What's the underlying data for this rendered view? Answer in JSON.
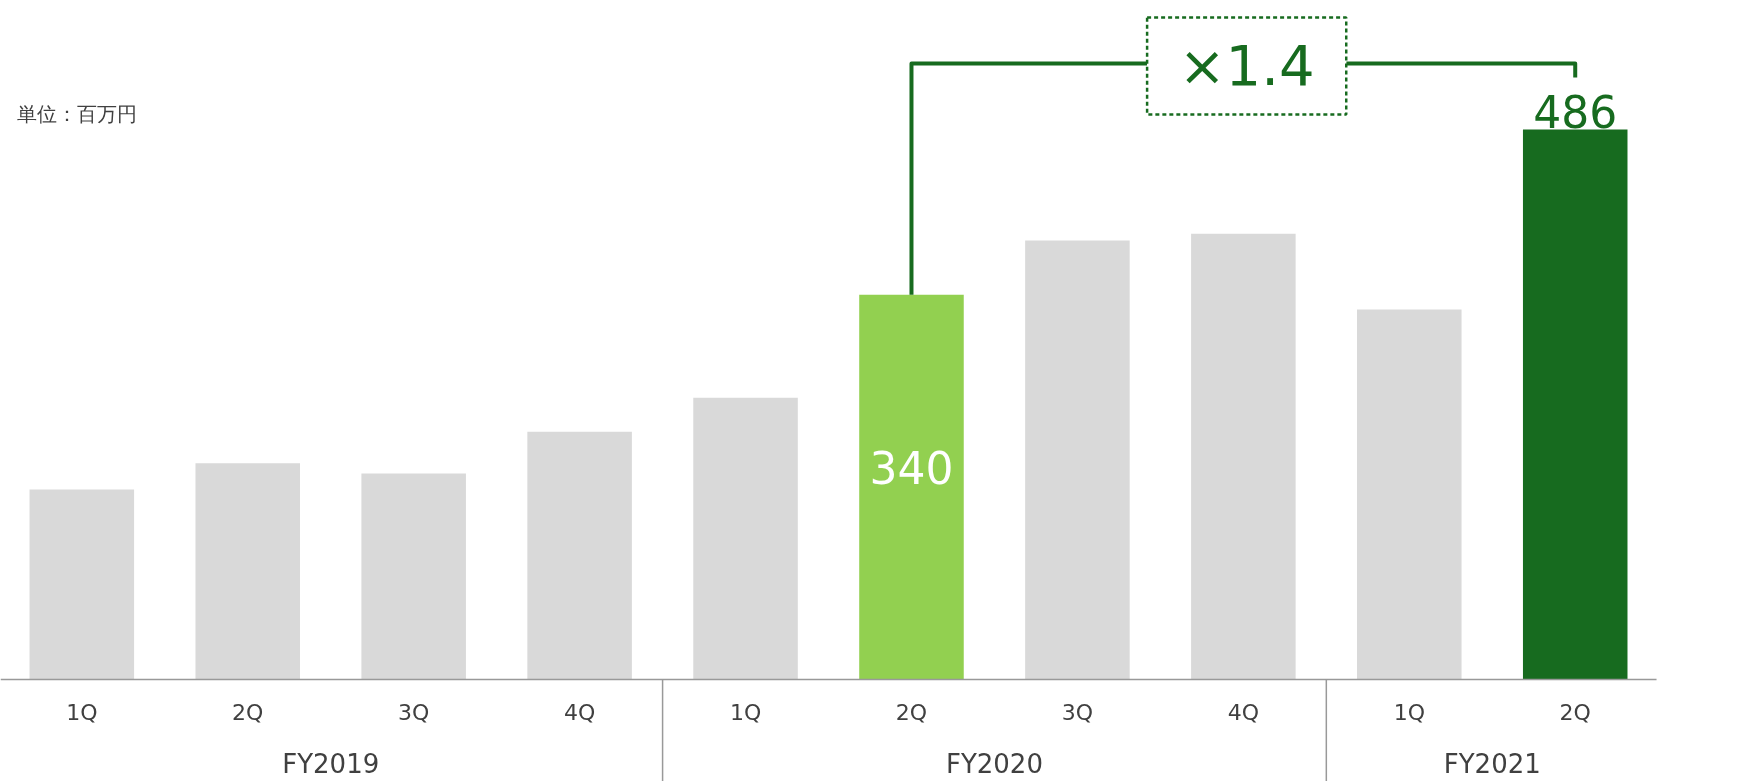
{
  "chart_data": {
    "type": "bar",
    "categories": [
      "1Q",
      "2Q",
      "3Q",
      "4Q",
      "1Q",
      "2Q",
      "3Q",
      "4Q",
      "1Q",
      "2Q"
    ],
    "values": [
      168,
      191,
      182,
      219,
      249,
      340,
      388,
      394,
      327,
      486
    ],
    "value_labels": [
      null,
      null,
      null,
      null,
      null,
      "340",
      null,
      null,
      null,
      "486"
    ],
    "colors": [
      "#d9d9d9",
      "#d9d9d9",
      "#d9d9d9",
      "#d9d9d9",
      "#d9d9d9",
      "#92d050",
      "#d9d9d9",
      "#d9d9d9",
      "#d9d9d9",
      "#176b1f"
    ],
    "annotations": [
      "単位：百万円",
      "×1.4",
      "FY2019",
      "FY2020",
      "FY2021"
    ],
    "grid": false
  }
}
